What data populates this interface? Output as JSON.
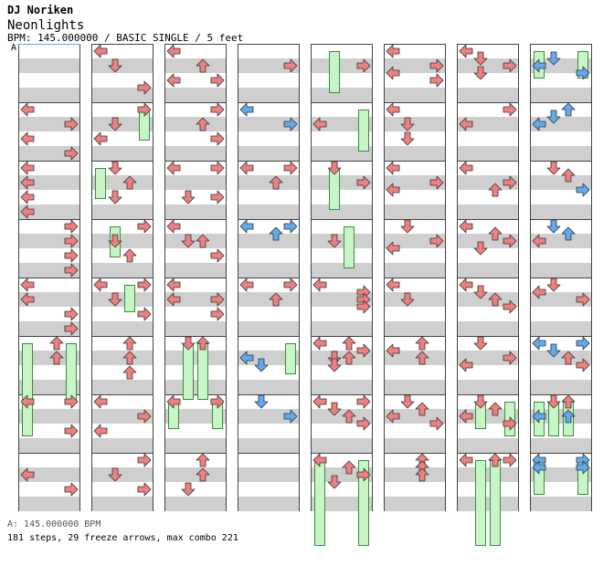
{
  "header": {
    "artist": "DJ Noriken",
    "title": "Neonlights",
    "info": "BPM: 145.000000 / BASIC SINGLE / 5 feet",
    "bpm_marker": "A"
  },
  "footer": {
    "bpm_line": "A: 145.000000 BPM",
    "stats": "181 steps, 29 freeze arrows, max combo 221"
  },
  "colors": {
    "note_red": "#f08080",
    "note_blue": "#60aaf0",
    "freeze_green": "#c8f5c8",
    "stripe": "#cfcfcf"
  },
  "chart": {
    "columns": 8,
    "measures_per_column": 8,
    "lanes": [
      "left",
      "down",
      "up",
      "right"
    ],
    "notes": [
      [
        0,
        1,
        "L",
        0
      ],
      [
        0,
        1,
        "R",
        2
      ],
      [
        0,
        1,
        "L",
        4
      ],
      [
        0,
        1,
        "R",
        6
      ],
      [
        0,
        2,
        "L",
        0
      ],
      [
        0,
        2,
        "L",
        2
      ],
      [
        0,
        2,
        "L",
        4
      ],
      [
        0,
        2,
        "L",
        6
      ],
      [
        0,
        3,
        "R",
        0
      ],
      [
        0,
        3,
        "R",
        2
      ],
      [
        0,
        3,
        "R",
        4
      ],
      [
        0,
        3,
        "R",
        6
      ],
      [
        0,
        4,
        "L",
        0
      ],
      [
        0,
        4,
        "L",
        2
      ],
      [
        0,
        4,
        "R",
        4
      ],
      [
        0,
        4,
        "R",
        6
      ],
      [
        0,
        5,
        "U",
        0
      ],
      [
        0,
        5,
        "U",
        2
      ],
      [
        0,
        6,
        "L",
        0
      ],
      [
        0,
        6,
        "R",
        0
      ],
      [
        0,
        6,
        "R",
        4
      ],
      [
        0,
        7,
        "L",
        2
      ],
      [
        0,
        7,
        "R",
        4
      ],
      [
        1,
        0,
        "L",
        0
      ],
      [
        1,
        0,
        "D",
        2
      ],
      [
        1,
        0,
        "R",
        5
      ],
      [
        1,
        1,
        "R",
        0
      ],
      [
        1,
        1,
        "D",
        2
      ],
      [
        1,
        1,
        "L",
        4
      ],
      [
        1,
        2,
        "D",
        0
      ],
      [
        1,
        2,
        "U",
        2
      ],
      [
        1,
        2,
        "D",
        4
      ],
      [
        1,
        3,
        "R",
        0
      ],
      [
        1,
        3,
        "D",
        2
      ],
      [
        1,
        3,
        "U",
        4
      ],
      [
        1,
        4,
        "L",
        0
      ],
      [
        1,
        4,
        "R",
        0
      ],
      [
        1,
        4,
        "D",
        2
      ],
      [
        1,
        4,
        "R",
        4
      ],
      [
        1,
        5,
        "U",
        0
      ],
      [
        1,
        5,
        "U",
        2
      ],
      [
        1,
        5,
        "U",
        4
      ],
      [
        1,
        6,
        "L",
        0
      ],
      [
        1,
        6,
        "R",
        2
      ],
      [
        1,
        6,
        "L",
        4
      ],
      [
        1,
        7,
        "R",
        0
      ],
      [
        1,
        7,
        "D",
        2
      ],
      [
        1,
        7,
        "R",
        4
      ],
      [
        2,
        0,
        "L",
        0
      ],
      [
        2,
        0,
        "U",
        2
      ],
      [
        2,
        0,
        "L",
        4
      ],
      [
        2,
        0,
        "R",
        4
      ],
      [
        2,
        1,
        "R",
        0
      ],
      [
        2,
        1,
        "U",
        2
      ],
      [
        2,
        1,
        "R",
        4
      ],
      [
        2,
        2,
        "L",
        0
      ],
      [
        2,
        2,
        "R",
        0
      ],
      [
        2,
        2,
        "D",
        4
      ],
      [
        2,
        2,
        "R",
        4
      ],
      [
        2,
        3,
        "L",
        0
      ],
      [
        2,
        3,
        "D",
        2
      ],
      [
        2,
        3,
        "U",
        2
      ],
      [
        2,
        3,
        "R",
        4
      ],
      [
        2,
        4,
        "L",
        0
      ],
      [
        2,
        4,
        "L",
        2
      ],
      [
        2,
        4,
        "R",
        2
      ],
      [
        2,
        4,
        "R",
        4
      ],
      [
        2,
        5,
        "D",
        0
      ],
      [
        2,
        5,
        "U",
        0
      ],
      [
        2,
        6,
        "L",
        0
      ],
      [
        2,
        6,
        "R",
        0
      ],
      [
        2,
        7,
        "U",
        0
      ],
      [
        2,
        7,
        "U",
        2
      ],
      [
        2,
        7,
        "D",
        4
      ],
      [
        3,
        0,
        "R",
        2
      ],
      [
        3,
        1,
        "Lb",
        0
      ],
      [
        3,
        1,
        "Rb",
        2
      ],
      [
        3,
        2,
        "L",
        0
      ],
      [
        3,
        2,
        "R",
        0
      ],
      [
        3,
        2,
        "U",
        2
      ],
      [
        3,
        3,
        "Lb",
        0
      ],
      [
        3,
        3,
        "Rb",
        0
      ],
      [
        3,
        3,
        "Ub",
        1
      ],
      [
        3,
        4,
        "L",
        0
      ],
      [
        3,
        4,
        "R",
        0
      ],
      [
        3,
        4,
        "U",
        2
      ],
      [
        3,
        5,
        "Lb",
        2
      ],
      [
        3,
        5,
        "Db",
        3
      ],
      [
        3,
        6,
        "Db",
        0
      ],
      [
        3,
        6,
        "Rb",
        2
      ],
      [
        4,
        0,
        "R",
        2
      ],
      [
        4,
        1,
        "L",
        2
      ],
      [
        4,
        2,
        "D",
        0
      ],
      [
        4,
        2,
        "R",
        2
      ],
      [
        4,
        3,
        "D",
        2
      ],
      [
        4,
        4,
        "L",
        0
      ],
      [
        4,
        4,
        "R",
        1
      ],
      [
        4,
        4,
        "R",
        2
      ],
      [
        4,
        4,
        "R",
        3
      ],
      [
        4,
        5,
        "L",
        0
      ],
      [
        4,
        5,
        "U",
        0
      ],
      [
        4,
        5,
        "R",
        1
      ],
      [
        4,
        5,
        "D",
        2
      ],
      [
        4,
        5,
        "U",
        2
      ],
      [
        4,
        5,
        "D",
        3
      ],
      [
        4,
        6,
        "L",
        0
      ],
      [
        4,
        6,
        "R",
        0
      ],
      [
        4,
        6,
        "D",
        1
      ],
      [
        4,
        6,
        "U",
        2
      ],
      [
        4,
        6,
        "R",
        3
      ],
      [
        4,
        7,
        "L",
        0
      ],
      [
        4,
        7,
        "U",
        1
      ],
      [
        4,
        7,
        "R",
        2
      ],
      [
        4,
        7,
        "D",
        3
      ],
      [
        5,
        0,
        "L",
        0
      ],
      [
        5,
        0,
        "R",
        2
      ],
      [
        5,
        0,
        "L",
        3
      ],
      [
        5,
        0,
        "R",
        4
      ],
      [
        5,
        1,
        "L",
        0
      ],
      [
        5,
        1,
        "D",
        2
      ],
      [
        5,
        1,
        "D",
        4
      ],
      [
        5,
        2,
        "L",
        0
      ],
      [
        5,
        2,
        "R",
        2
      ],
      [
        5,
        2,
        "L",
        3
      ],
      [
        5,
        3,
        "D",
        0
      ],
      [
        5,
        3,
        "R",
        2
      ],
      [
        5,
        3,
        "L",
        3
      ],
      [
        5,
        4,
        "L",
        0
      ],
      [
        5,
        4,
        "D",
        2
      ],
      [
        5,
        5,
        "U",
        0
      ],
      [
        5,
        5,
        "L",
        1
      ],
      [
        5,
        5,
        "U",
        2
      ],
      [
        5,
        6,
        "D",
        0
      ],
      [
        5,
        6,
        "U",
        1
      ],
      [
        5,
        6,
        "L",
        2
      ],
      [
        5,
        6,
        "R",
        3
      ],
      [
        5,
        7,
        "U",
        0
      ],
      [
        5,
        7,
        "U",
        1
      ],
      [
        5,
        7,
        "U",
        2
      ],
      [
        6,
        0,
        "L",
        0
      ],
      [
        6,
        0,
        "D",
        1
      ],
      [
        6,
        0,
        "R",
        2
      ],
      [
        6,
        0,
        "D",
        3
      ],
      [
        6,
        1,
        "R",
        0
      ],
      [
        6,
        1,
        "L",
        2
      ],
      [
        6,
        2,
        "L",
        0
      ],
      [
        6,
        2,
        "R",
        2
      ],
      [
        6,
        2,
        "U",
        3
      ],
      [
        6,
        3,
        "L",
        0
      ],
      [
        6,
        3,
        "U",
        1
      ],
      [
        6,
        3,
        "R",
        2
      ],
      [
        6,
        3,
        "D",
        3
      ],
      [
        6,
        4,
        "L",
        0
      ],
      [
        6,
        4,
        "D",
        1
      ],
      [
        6,
        4,
        "U",
        2
      ],
      [
        6,
        4,
        "R",
        3
      ],
      [
        6,
        5,
        "D",
        0
      ],
      [
        6,
        5,
        "R",
        2
      ],
      [
        6,
        5,
        "L",
        3
      ],
      [
        6,
        6,
        "D",
        0
      ],
      [
        6,
        6,
        "U",
        1
      ],
      [
        6,
        6,
        "L",
        2
      ],
      [
        6,
        6,
        "R",
        3
      ],
      [
        6,
        7,
        "L",
        0
      ],
      [
        6,
        7,
        "U",
        0
      ],
      [
        6,
        7,
        "R",
        0
      ],
      [
        7,
        0,
        "Db",
        1
      ],
      [
        7,
        0,
        "Lb",
        2
      ],
      [
        7,
        0,
        "Rb",
        3
      ],
      [
        7,
        1,
        "Ub",
        0
      ],
      [
        7,
        1,
        "Db",
        1
      ],
      [
        7,
        1,
        "Lb",
        2
      ],
      [
        7,
        2,
        "D",
        0
      ],
      [
        7,
        2,
        "U",
        1
      ],
      [
        7,
        2,
        "Rb",
        3
      ],
      [
        7,
        3,
        "Db",
        0
      ],
      [
        7,
        3,
        "Ub",
        1
      ],
      [
        7,
        3,
        "L",
        2
      ],
      [
        7,
        4,
        "D",
        0
      ],
      [
        7,
        4,
        "L",
        1
      ],
      [
        7,
        4,
        "R",
        2
      ],
      [
        7,
        5,
        "Lb",
        0
      ],
      [
        7,
        5,
        "Rb",
        0
      ],
      [
        7,
        5,
        "Db",
        1
      ],
      [
        7,
        5,
        "U",
        2
      ],
      [
        7,
        5,
        "R",
        3
      ],
      [
        7,
        6,
        "D",
        0
      ],
      [
        7,
        6,
        "U",
        0
      ],
      [
        7,
        6,
        "Lb",
        2
      ],
      [
        7,
        6,
        "Ub",
        2
      ],
      [
        7,
        7,
        "Lb",
        0
      ],
      [
        7,
        7,
        "Rb",
        0
      ],
      [
        7,
        7,
        "Lb",
        1
      ],
      [
        7,
        7,
        "Rb",
        1
      ]
    ],
    "freezes": [
      [
        0,
        5,
        0,
        14
      ],
      [
        0,
        5,
        3,
        14
      ],
      [
        0,
        6,
        0,
        8
      ],
      [
        1,
        1,
        3,
        7
      ],
      [
        1,
        2,
        0,
        7
      ],
      [
        1,
        3,
        1,
        7
      ],
      [
        1,
        4,
        2,
        6
      ],
      [
        2,
        5,
        1,
        14
      ],
      [
        2,
        5,
        2,
        14
      ],
      [
        2,
        6,
        0,
        6
      ],
      [
        2,
        6,
        3,
        6
      ],
      [
        3,
        5,
        3,
        7
      ],
      [
        4,
        0,
        1,
        10
      ],
      [
        4,
        1,
        3,
        10
      ],
      [
        4,
        2,
        1,
        10
      ],
      [
        4,
        3,
        2,
        10
      ],
      [
        4,
        7,
        0,
        22
      ],
      [
        4,
        7,
        3,
        22
      ],
      [
        6,
        6,
        1,
        6
      ],
      [
        6,
        6,
        3,
        8
      ],
      [
        6,
        7,
        1,
        22
      ],
      [
        6,
        7,
        2,
        22
      ],
      [
        7,
        0,
        0,
        6
      ],
      [
        7,
        0,
        3,
        6
      ],
      [
        7,
        6,
        1,
        8
      ],
      [
        7,
        6,
        2,
        8
      ],
      [
        7,
        7,
        0,
        8
      ],
      [
        7,
        7,
        3,
        8
      ],
      [
        7,
        6,
        0,
        8
      ]
    ]
  }
}
